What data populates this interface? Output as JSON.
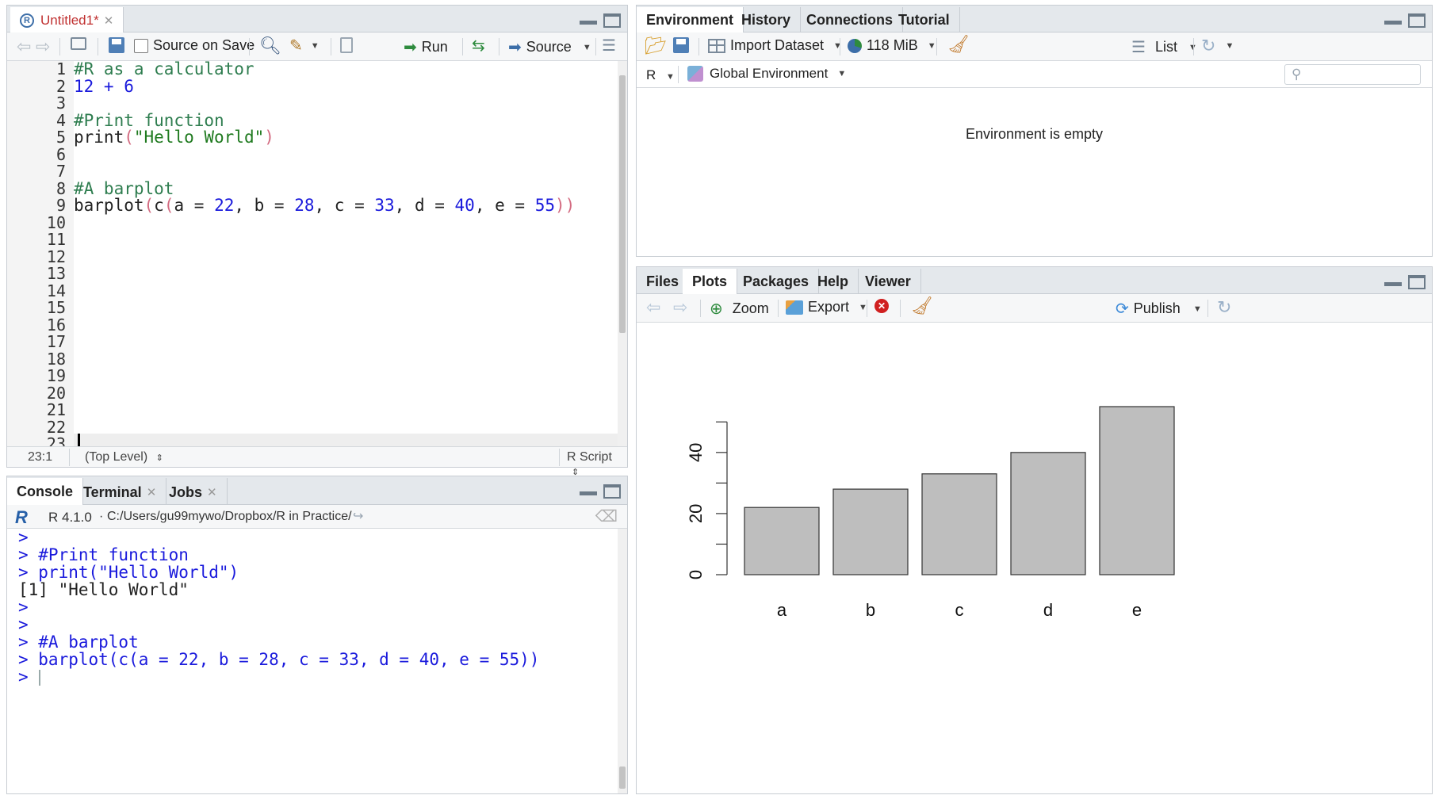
{
  "source": {
    "tab_label": "Untitled1*",
    "toolbar": {
      "source_on_save": "Source on Save",
      "run": "Run",
      "source": "Source"
    },
    "lines": [
      {
        "n": "1",
        "parts": [
          {
            "t": "#R as a calculator",
            "c": "cm"
          }
        ]
      },
      {
        "n": "2",
        "parts": [
          {
            "t": "12 + 6",
            "c": "num"
          }
        ]
      },
      {
        "n": "3",
        "parts": []
      },
      {
        "n": "4",
        "parts": [
          {
            "t": "#Print function",
            "c": "cm"
          }
        ]
      },
      {
        "n": "5",
        "parts": [
          {
            "t": "print",
            "c": "fn"
          },
          {
            "t": "(",
            "c": "par"
          },
          {
            "t": "\"Hello World\"",
            "c": "str"
          },
          {
            "t": ")",
            "c": "par"
          }
        ]
      },
      {
        "n": "6",
        "parts": []
      },
      {
        "n": "7",
        "parts": []
      },
      {
        "n": "8",
        "parts": [
          {
            "t": "#A barplot",
            "c": "cm"
          }
        ]
      },
      {
        "n": "9",
        "parts": [
          {
            "t": "barplot",
            "c": "fn"
          },
          {
            "t": "(",
            "c": "par"
          },
          {
            "t": "c",
            "c": "fn"
          },
          {
            "t": "(",
            "c": "par"
          },
          {
            "t": "a = ",
            "c": "fn"
          },
          {
            "t": "22",
            "c": "num"
          },
          {
            "t": ", b = ",
            "c": "fn"
          },
          {
            "t": "28",
            "c": "num"
          },
          {
            "t": ", c = ",
            "c": "fn"
          },
          {
            "t": "33",
            "c": "num"
          },
          {
            "t": ", d = ",
            "c": "fn"
          },
          {
            "t": "40",
            "c": "num"
          },
          {
            "t": ", e = ",
            "c": "fn"
          },
          {
            "t": "55",
            "c": "num"
          },
          {
            "t": "))",
            "c": "par"
          }
        ]
      },
      {
        "n": "10",
        "parts": []
      },
      {
        "n": "11",
        "parts": []
      },
      {
        "n": "12",
        "parts": []
      },
      {
        "n": "13",
        "parts": []
      },
      {
        "n": "14",
        "parts": []
      },
      {
        "n": "15",
        "parts": []
      },
      {
        "n": "16",
        "parts": []
      },
      {
        "n": "17",
        "parts": []
      },
      {
        "n": "18",
        "parts": []
      },
      {
        "n": "19",
        "parts": []
      },
      {
        "n": "20",
        "parts": []
      },
      {
        "n": "21",
        "parts": []
      },
      {
        "n": "22",
        "parts": []
      },
      {
        "n": "23",
        "parts": []
      }
    ],
    "status": {
      "position": "23:1",
      "scope": "(Top Level)",
      "filetype": "R Script"
    }
  },
  "console": {
    "tabs": [
      "Console",
      "Terminal",
      "Jobs"
    ],
    "version": "R 4.1.0",
    "path": "C:/Users/gu99mywo/Dropbox/R in Practice/",
    "lines": [
      {
        "t": ">",
        "c": "prompt"
      },
      {
        "t": "> #Print function",
        "c": "prompt"
      },
      {
        "t": "> print(\"Hello World\")",
        "c": "prompt"
      },
      {
        "t": "[1] \"Hello World\"",
        "c": "out"
      },
      {
        "t": ">",
        "c": "prompt"
      },
      {
        "t": ">",
        "c": "prompt"
      },
      {
        "t": "> #A barplot",
        "c": "prompt"
      },
      {
        "t": "> barplot(c(a = 22, b = 28, c = 33, d = 40, e = 55))",
        "c": "prompt"
      },
      {
        "t": "> ",
        "c": "prompt"
      }
    ]
  },
  "environment": {
    "tabs": [
      "Environment",
      "History",
      "Connections",
      "Tutorial"
    ],
    "import_dataset": "Import Dataset",
    "memory": "118 MiB",
    "view_mode": "List",
    "language": "R",
    "scope": "Global Environment",
    "empty_message": "Environment is empty"
  },
  "plots_pane": {
    "tabs": [
      "Files",
      "Plots",
      "Packages",
      "Help",
      "Viewer"
    ],
    "zoom": "Zoom",
    "export": "Export",
    "publish": "Publish"
  },
  "chart_data": {
    "type": "bar",
    "categories": [
      "a",
      "b",
      "c",
      "d",
      "e"
    ],
    "values": [
      22,
      28,
      33,
      40,
      55
    ],
    "ylim": [
      0,
      55
    ],
    "yticks": [
      0,
      10,
      20,
      30,
      40,
      50
    ],
    "ytick_labels": [
      "0",
      "20",
      "40"
    ],
    "bar_color": "#bebebe",
    "grid": false
  },
  "colors": {
    "comment": "#2e7d4f",
    "number": "#1a1adc",
    "string": "#1f7a1f",
    "console_prompt": "#1a1adc",
    "tab_label_modified": "#c03030"
  }
}
